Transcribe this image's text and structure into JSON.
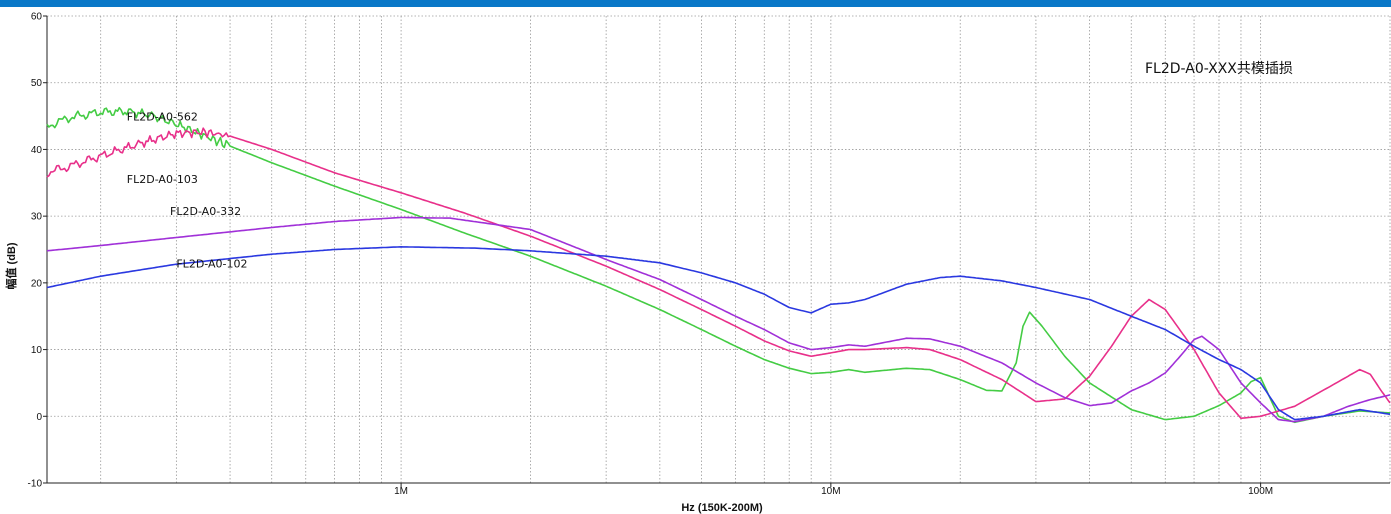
{
  "chart_data": {
    "type": "line",
    "title": "FL2D-A0-XXX共模插损",
    "xlabel": "Hz  (150K-200M)",
    "ylabel": "幅值 (dB)",
    "x_scale": "log",
    "xlim": [
      150000,
      200000000
    ],
    "ylim": [
      -10,
      60
    ],
    "grid": true,
    "y_ticks": [
      -10,
      0,
      10,
      20,
      30,
      40,
      50,
      60
    ],
    "x_ticks": [
      {
        "value": 1000000,
        "label": "1M"
      },
      {
        "value": 10000000,
        "label": "10M"
      },
      {
        "value": 100000000,
        "label": "100M"
      }
    ],
    "colors": {
      "header_bar": "#0a78c8",
      "grid": "#9a9a9a",
      "axis": "#222222"
    },
    "series": [
      {
        "name": "FL2D-A0-562",
        "color": "#44cc44",
        "noisy_until": 400000,
        "points": [
          [
            150000,
            43.5
          ],
          [
            170000,
            44.8
          ],
          [
            200000,
            45.6
          ],
          [
            230000,
            45.7
          ],
          [
            260000,
            45.2
          ],
          [
            300000,
            43.8
          ],
          [
            350000,
            42.0
          ],
          [
            400000,
            40.5
          ],
          [
            500000,
            38.0
          ],
          [
            700000,
            34.5
          ],
          [
            1000000,
            31.0
          ],
          [
            1400000,
            27.5
          ],
          [
            2000000,
            24.0
          ],
          [
            3000000,
            19.5
          ],
          [
            4000000,
            16.0
          ],
          [
            5000000,
            13.0
          ],
          [
            6000000,
            10.5
          ],
          [
            7000000,
            8.5
          ],
          [
            8000000,
            7.2
          ],
          [
            9000000,
            6.4
          ],
          [
            10000000,
            6.6
          ],
          [
            11000000,
            7.0
          ],
          [
            12000000,
            6.6
          ],
          [
            15000000,
            7.2
          ],
          [
            17000000,
            7.0
          ],
          [
            20000000,
            5.5
          ],
          [
            23000000,
            3.9
          ],
          [
            25000000,
            3.8
          ],
          [
            27000000,
            8.0
          ],
          [
            28000000,
            13.5
          ],
          [
            29000000,
            15.6
          ],
          [
            31000000,
            13.5
          ],
          [
            35000000,
            9.0
          ],
          [
            40000000,
            5.0
          ],
          [
            50000000,
            1.0
          ],
          [
            60000000,
            -0.5
          ],
          [
            70000000,
            0.0
          ],
          [
            80000000,
            1.6
          ],
          [
            90000000,
            3.5
          ],
          [
            95000000,
            5.2
          ],
          [
            100000000,
            5.8
          ],
          [
            110000000,
            0.0
          ],
          [
            120000000,
            -0.9
          ],
          [
            140000000,
            0.0
          ],
          [
            170000000,
            0.8
          ],
          [
            200000000,
            0.5
          ]
        ]
      },
      {
        "name": "FL2D-A0-103",
        "color": "#e8308a",
        "noisy_until": 400000,
        "points": [
          [
            150000,
            36.5
          ],
          [
            170000,
            37.5
          ],
          [
            200000,
            39.0
          ],
          [
            250000,
            41.0
          ],
          [
            300000,
            42.4
          ],
          [
            350000,
            42.6
          ],
          [
            400000,
            42.0
          ],
          [
            500000,
            40.0
          ],
          [
            700000,
            36.5
          ],
          [
            1000000,
            33.5
          ],
          [
            1400000,
            30.5
          ],
          [
            2000000,
            27.0
          ],
          [
            3000000,
            22.5
          ],
          [
            4000000,
            19.0
          ],
          [
            5000000,
            16.0
          ],
          [
            6000000,
            13.5
          ],
          [
            7000000,
            11.3
          ],
          [
            8000000,
            9.8
          ],
          [
            9000000,
            9.0
          ],
          [
            10000000,
            9.5
          ],
          [
            11000000,
            10.0
          ],
          [
            12000000,
            10.0
          ],
          [
            15000000,
            10.3
          ],
          [
            17000000,
            10.0
          ],
          [
            20000000,
            8.5
          ],
          [
            25000000,
            5.5
          ],
          [
            30000000,
            2.2
          ],
          [
            35000000,
            2.6
          ],
          [
            40000000,
            6.0
          ],
          [
            45000000,
            10.5
          ],
          [
            50000000,
            15.0
          ],
          [
            55000000,
            17.5
          ],
          [
            60000000,
            16.0
          ],
          [
            70000000,
            10.0
          ],
          [
            80000000,
            3.5
          ],
          [
            90000000,
            -0.3
          ],
          [
            100000000,
            0.0
          ],
          [
            120000000,
            1.5
          ],
          [
            150000000,
            5.0
          ],
          [
            170000000,
            7.0
          ],
          [
            180000000,
            6.3
          ],
          [
            190000000,
            4.0
          ],
          [
            200000000,
            2.0
          ]
        ]
      },
      {
        "name": "FL2D-A0-332",
        "color": "#a030d8",
        "points": [
          [
            150000,
            24.8
          ],
          [
            200000,
            25.6
          ],
          [
            300000,
            26.8
          ],
          [
            500000,
            28.3
          ],
          [
            700000,
            29.2
          ],
          [
            1000000,
            29.8
          ],
          [
            1300000,
            29.7
          ],
          [
            2000000,
            28.0
          ],
          [
            3000000,
            23.5
          ],
          [
            4000000,
            20.5
          ],
          [
            5000000,
            17.5
          ],
          [
            6000000,
            15.0
          ],
          [
            7000000,
            13.0
          ],
          [
            8000000,
            11.0
          ],
          [
            9000000,
            10.0
          ],
          [
            10000000,
            10.3
          ],
          [
            11000000,
            10.7
          ],
          [
            12000000,
            10.5
          ],
          [
            15000000,
            11.7
          ],
          [
            17000000,
            11.6
          ],
          [
            20000000,
            10.5
          ],
          [
            25000000,
            8.0
          ],
          [
            30000000,
            5.0
          ],
          [
            35000000,
            2.8
          ],
          [
            40000000,
            1.6
          ],
          [
            45000000,
            2.0
          ],
          [
            50000000,
            3.8
          ],
          [
            55000000,
            5.0
          ],
          [
            60000000,
            6.5
          ],
          [
            65000000,
            9.0
          ],
          [
            70000000,
            11.5
          ],
          [
            73000000,
            12.0
          ],
          [
            80000000,
            10.0
          ],
          [
            90000000,
            5.0
          ],
          [
            100000000,
            2.0
          ],
          [
            110000000,
            -0.5
          ],
          [
            120000000,
            -0.8
          ],
          [
            140000000,
            0.0
          ],
          [
            160000000,
            1.5
          ],
          [
            180000000,
            2.5
          ],
          [
            200000000,
            3.2
          ]
        ]
      },
      {
        "name": "FL2D-A0-102",
        "color": "#2a38e0",
        "points": [
          [
            150000,
            19.3
          ],
          [
            200000,
            21.0
          ],
          [
            300000,
            22.8
          ],
          [
            500000,
            24.3
          ],
          [
            700000,
            25.0
          ],
          [
            1000000,
            25.4
          ],
          [
            1500000,
            25.2
          ],
          [
            2000000,
            24.8
          ],
          [
            3000000,
            24.0
          ],
          [
            4000000,
            23.0
          ],
          [
            5000000,
            21.5
          ],
          [
            6000000,
            20.0
          ],
          [
            7000000,
            18.3
          ],
          [
            8000000,
            16.3
          ],
          [
            9000000,
            15.5
          ],
          [
            10000000,
            16.8
          ],
          [
            11000000,
            17.0
          ],
          [
            12000000,
            17.5
          ],
          [
            15000000,
            19.8
          ],
          [
            18000000,
            20.8
          ],
          [
            20000000,
            21.0
          ],
          [
            25000000,
            20.3
          ],
          [
            30000000,
            19.3
          ],
          [
            40000000,
            17.5
          ],
          [
            50000000,
            15.0
          ],
          [
            60000000,
            13.0
          ],
          [
            70000000,
            10.5
          ],
          [
            80000000,
            8.5
          ],
          [
            90000000,
            7.0
          ],
          [
            100000000,
            5.0
          ],
          [
            110000000,
            1.0
          ],
          [
            120000000,
            -0.5
          ],
          [
            140000000,
            0.0
          ],
          [
            170000000,
            1.0
          ],
          [
            200000000,
            0.3
          ]
        ]
      }
    ],
    "annotations": [
      {
        "series": 0,
        "text": "FL2D-A0-562",
        "x": 230000,
        "y": 44.3
      },
      {
        "series": 1,
        "text": "FL2D-A0-103",
        "x": 230000,
        "y": 35.0
      },
      {
        "series": 2,
        "text": "FL2D-A0-332",
        "x": 290000,
        "y": 30.2
      },
      {
        "series": 3,
        "text": "FL2D-A0-102",
        "x": 300000,
        "y": 22.3
      }
    ]
  }
}
